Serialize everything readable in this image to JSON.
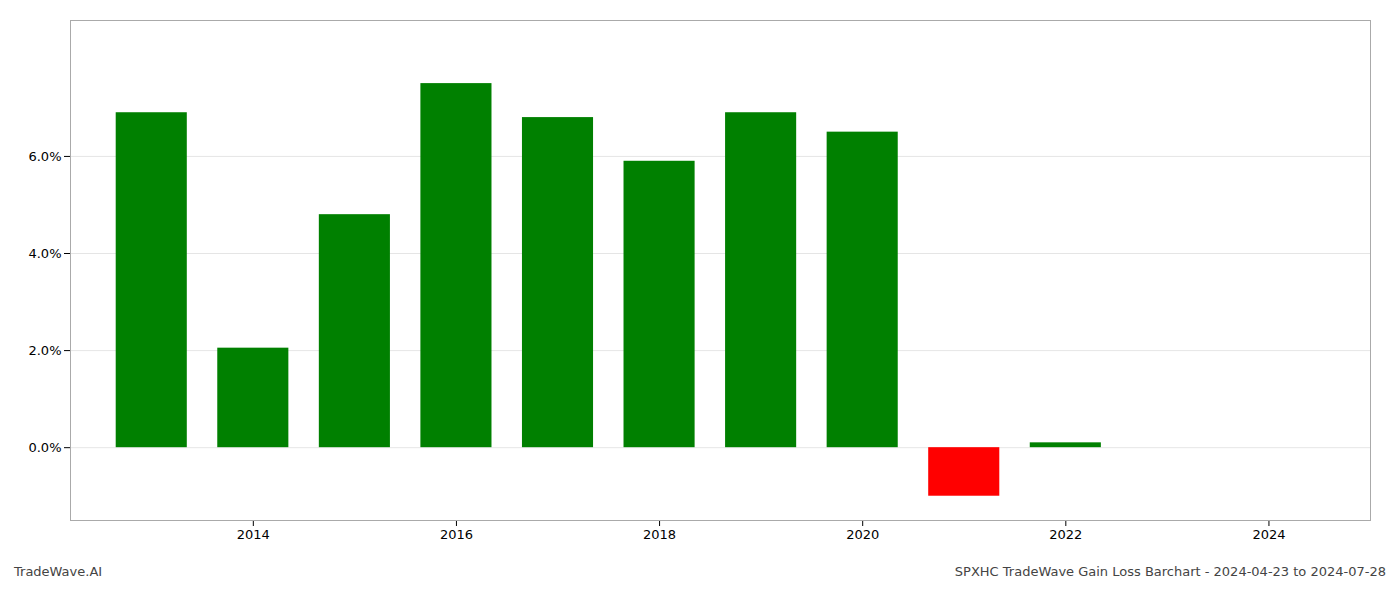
{
  "chart_data": {
    "type": "bar",
    "x": [
      2013,
      2014,
      2015,
      2016,
      2017,
      2018,
      2019,
      2020,
      2021,
      2022,
      2023
    ],
    "values": [
      0.069,
      0.0205,
      0.048,
      0.075,
      0.068,
      0.059,
      0.069,
      0.065,
      -0.01,
      0.001,
      0.0
    ],
    "colors": [
      "#008000",
      "#008000",
      "#008000",
      "#008000",
      "#008000",
      "#008000",
      "#008000",
      "#008000",
      "#ff0000",
      "#008000",
      "#008000"
    ],
    "xlim": [
      2012.2,
      2025.0
    ],
    "xticks": [
      2014,
      2016,
      2018,
      2020,
      2022,
      2024
    ],
    "ylim": [
      -0.015,
      0.088
    ],
    "yticks": [
      {
        "value": 0.0,
        "label": "0.0%"
      },
      {
        "value": 0.02,
        "label": "2.0%"
      },
      {
        "value": 0.04,
        "label": "4.0%"
      },
      {
        "value": 0.06,
        "label": "6.0%"
      }
    ],
    "grid": true,
    "annotations": [
      "TradeWave.AI",
      "SPXHC TradeWave Gain Loss Barchart - 2024-04-23 to 2024-07-28"
    ]
  }
}
